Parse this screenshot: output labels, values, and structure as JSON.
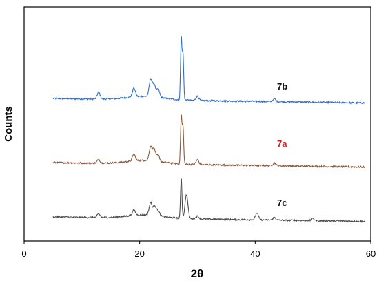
{
  "chart_data": {
    "type": "line",
    "xlabel": "2θ",
    "ylabel": "Counts",
    "xlim": [
      0,
      60
    ],
    "xticks": [
      0,
      20,
      40,
      60
    ],
    "y_tick_labels": false,
    "grid": false,
    "legend": "inline labels beside each trace (right side)",
    "stacked_offset": true,
    "series": [
      {
        "name": "7b",
        "color": "#2f6fcb",
        "label_color": "#111111",
        "baseline": 143,
        "x_range": [
          5,
          59
        ],
        "peaks": [
          {
            "x": 12.9,
            "h": 10
          },
          {
            "x": 19.0,
            "h": 13
          },
          {
            "x": 21.9,
            "h": 25
          },
          {
            "x": 22.5,
            "h": 18
          },
          {
            "x": 23.2,
            "h": 12
          },
          {
            "x": 27.2,
            "h": 90
          },
          {
            "x": 27.5,
            "h": 68
          },
          {
            "x": 30.0,
            "h": 6
          },
          {
            "x": 43.3,
            "h": 4
          }
        ]
      },
      {
        "name": "7a",
        "color": "#8b5a3c",
        "label_color": "#cc2222",
        "baseline": 236,
        "x_range": [
          5,
          59
        ],
        "peaks": [
          {
            "x": 12.9,
            "h": 5
          },
          {
            "x": 19.0,
            "h": 10
          },
          {
            "x": 21.9,
            "h": 20
          },
          {
            "x": 22.5,
            "h": 17
          },
          {
            "x": 23.2,
            "h": 9
          },
          {
            "x": 27.2,
            "h": 70
          },
          {
            "x": 27.5,
            "h": 55
          },
          {
            "x": 30.0,
            "h": 7
          },
          {
            "x": 43.3,
            "h": 4
          }
        ]
      },
      {
        "name": "7c",
        "color": "#4a4a4a",
        "label_color": "#111111",
        "baseline": 315,
        "x_range": [
          5,
          59
        ],
        "peaks": [
          {
            "x": 12.9,
            "h": 5
          },
          {
            "x": 19.0,
            "h": 8
          },
          {
            "x": 21.9,
            "h": 18
          },
          {
            "x": 22.6,
            "h": 14
          },
          {
            "x": 23.2,
            "h": 7
          },
          {
            "x": 27.2,
            "h": 60
          },
          {
            "x": 28.1,
            "h": 35
          },
          {
            "x": 30.0,
            "h": 4
          },
          {
            "x": 40.3,
            "h": 10
          },
          {
            "x": 43.3,
            "h": 4
          },
          {
            "x": 50.0,
            "h": 3
          }
        ]
      }
    ]
  }
}
